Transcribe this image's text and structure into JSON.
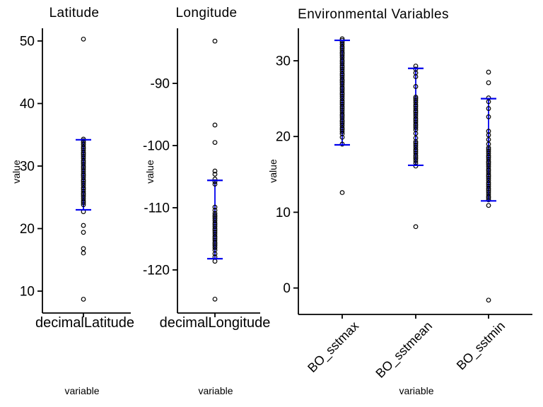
{
  "figure": {
    "background": "#ffffff",
    "axis_color": "#000000",
    "point_color": "#000000",
    "errorbar_color": "#0000EE"
  },
  "chart_data": [
    {
      "type": "scatter",
      "title": "Latitude",
      "ylabel": "value",
      "xlabel": "variable",
      "yticks": [
        50,
        40,
        30,
        20,
        10
      ],
      "ylim": [
        6.5,
        52
      ],
      "grid": false,
      "legend": "none",
      "series": [
        {
          "name": "decimalLatitude",
          "errorbar": {
            "high": 34.2,
            "low": 23.0
          },
          "dense_ranges": [
            [
              23.6,
              34.3
            ]
          ],
          "points": [
            50.3,
            22.7,
            20.5,
            19.4,
            16.8,
            16.1,
            8.7
          ]
        }
      ]
    },
    {
      "type": "scatter",
      "title": "Longitude",
      "ylabel": "value",
      "xlabel": "variable",
      "yticks": [
        -90,
        -100,
        -110,
        -120
      ],
      "ylim": [
        -127,
        -81
      ],
      "grid": false,
      "legend": "none",
      "series": [
        {
          "name": "decimalLongitude",
          "errorbar": {
            "high": -105.6,
            "low": -118.2
          },
          "dense_ranges": [
            [
              -117.0,
              -111.2
            ]
          ],
          "points": [
            -83.2,
            -96.7,
            -99.5,
            -104.1,
            -104.6,
            -105.4,
            -105.8,
            -106.2,
            -109.9,
            -110.4,
            -110.9,
            -117.4,
            -117.9,
            -118.6,
            -124.7
          ]
        }
      ]
    },
    {
      "type": "scatter",
      "title": "Environmental Variables",
      "ylabel": "value",
      "xlabel": "variable",
      "yticks": [
        30,
        20,
        10,
        0
      ],
      "ylim": [
        -3.5,
        34.3
      ],
      "grid": false,
      "legend": "none",
      "series": [
        {
          "name": "BO_sstmax",
          "errorbar": {
            "high": 32.7,
            "low": 18.9
          },
          "dense_ranges": [
            [
              20.3,
              32.9
            ]
          ],
          "points": [
            19.9,
            19.0,
            12.6
          ]
        },
        {
          "name": "BO_sstmean",
          "errorbar": {
            "high": 29.0,
            "low": 16.2
          },
          "dense_ranges": [
            [
              16.3,
              19.3
            ],
            [
              20.9,
              25.2
            ]
          ],
          "points": [
            29.3,
            28.9,
            28.4,
            27.9,
            26.6,
            20.4,
            19.8,
            16.1,
            8.1
          ]
        },
        {
          "name": "BO_sstmin",
          "errorbar": {
            "high": 25.0,
            "low": 11.5
          },
          "dense_ranges": [
            [
              11.6,
              18.5
            ]
          ],
          "points": [
            28.5,
            27.1,
            25.1,
            24.6,
            23.7,
            22.6,
            20.7,
            20.2,
            19.6,
            19.0,
            10.9,
            -1.6
          ]
        }
      ]
    }
  ]
}
